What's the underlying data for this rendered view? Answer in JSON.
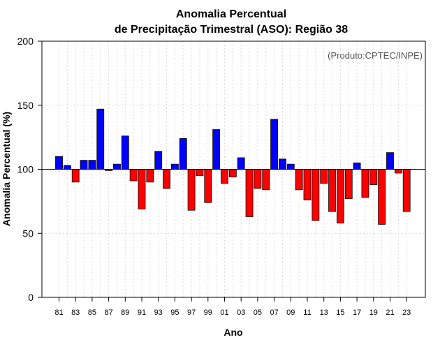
{
  "chart_data": {
    "type": "bar",
    "title_line1": "Anomalia Percentual",
    "title_line2": "de Precipitação Trimestral (ASO): Região 38",
    "xlabel": "Ano",
    "ylabel": "Anomalia Percentual (%)",
    "credit": "(Produto:CPTEC/INPE)",
    "baseline": 100,
    "ylim": [
      0,
      200
    ],
    "yticks": [
      0,
      50,
      100,
      150,
      200
    ],
    "colors": {
      "above": "#0000ff",
      "below": "#ff0000",
      "axis": "#000000",
      "grid": "#d9d9d9"
    },
    "years": [
      1981,
      1982,
      1983,
      1984,
      1985,
      1986,
      1987,
      1988,
      1989,
      1990,
      1991,
      1992,
      1993,
      1994,
      1995,
      1996,
      1997,
      1998,
      1999,
      2000,
      2001,
      2002,
      2003,
      2004,
      2005,
      2006,
      2007,
      2008,
      2009,
      2010,
      2011,
      2012,
      2013,
      2014,
      2015,
      2016,
      2017,
      2018,
      2019,
      2020,
      2021,
      2022,
      2023
    ],
    "xtick_labels": [
      "81",
      "83",
      "85",
      "87",
      "89",
      "91",
      "93",
      "95",
      "97",
      "99",
      "01",
      "03",
      "05",
      "07",
      "09",
      "11",
      "13",
      "15",
      "17",
      "19",
      "21",
      "23"
    ],
    "values": [
      110,
      103,
      90,
      107,
      107,
      147,
      99,
      104,
      126,
      91,
      69,
      90,
      114,
      85,
      104,
      124,
      68,
      95,
      74,
      131,
      89,
      94,
      109,
      63,
      85,
      84,
      139,
      108,
      104,
      84,
      76,
      60,
      89,
      67,
      58,
      77,
      105,
      78,
      88,
      57,
      113,
      97,
      67
    ]
  }
}
